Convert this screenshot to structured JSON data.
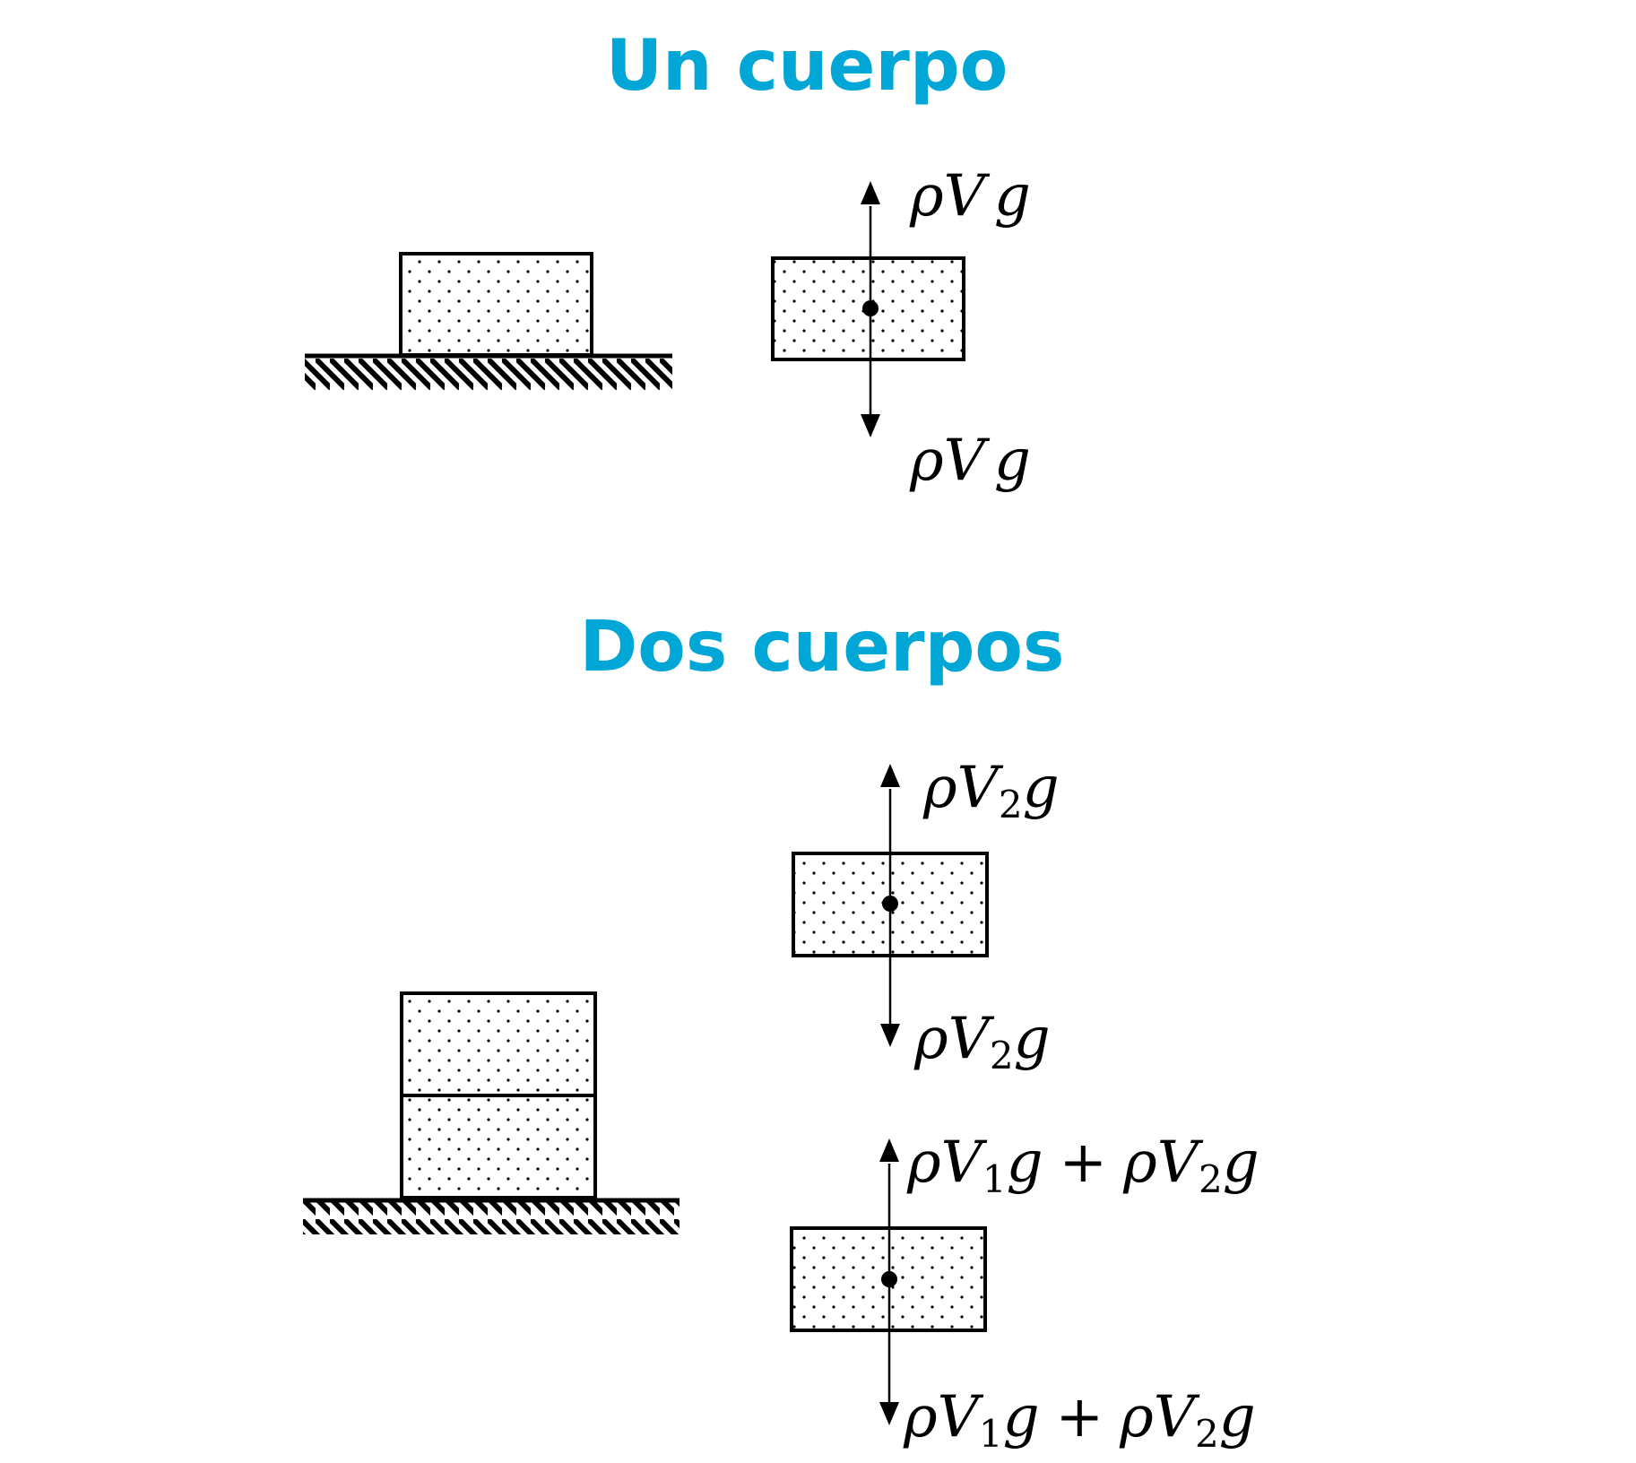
{
  "colors": {
    "title": "#00A6D6",
    "ink": "#000000"
  },
  "section_one": {
    "title": "Un cuerpo",
    "force_up": {
      "rho": "ρ",
      "V": "V",
      "sub": "",
      "g": "g"
    },
    "force_down": {
      "rho": "ρ",
      "V": "V",
      "sub": "",
      "g": "g"
    }
  },
  "section_two": {
    "title": "Dos cuerpos",
    "top_block": {
      "force_up": {
        "rho": "ρ",
        "V": "V",
        "sub": "2",
        "g": "g"
      },
      "force_down": {
        "rho": "ρ",
        "V": "V",
        "sub": "2",
        "g": "g"
      }
    },
    "bottom_block": {
      "force_up": {
        "a_rho": "ρ",
        "a_V": "V",
        "a_sub": "1",
        "a_g": "g",
        "plus": "+",
        "b_rho": "ρ",
        "b_V": "V",
        "b_sub": "2",
        "b_g": "g"
      },
      "force_down": {
        "a_rho": "ρ",
        "a_V": "V",
        "a_sub": "1",
        "a_g": "g",
        "plus": "+",
        "b_rho": "ρ",
        "b_V": "V",
        "b_sub": "2",
        "b_g": "g"
      }
    }
  }
}
